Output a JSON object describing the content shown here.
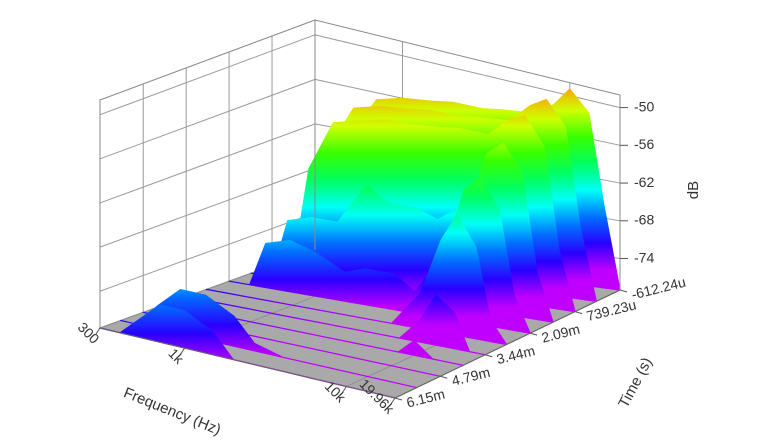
{
  "chart_data": {
    "type": "waterfall3d",
    "xlabel": "Frequency (Hz)",
    "ylabel": "Time (s)",
    "zlabel": "dB",
    "xscale": "log",
    "colormap": "rainbow",
    "floor_color": "#a9a9a9",
    "grid": true,
    "xlim": [
      300,
      19960
    ],
    "xticks": [
      300,
      {
        "value": 1000,
        "label": "1k"
      },
      {
        "value": 10000,
        "label": "10k"
      },
      {
        "value": 19960,
        "label": "19.96k"
      }
    ],
    "ylim": [
      -0.00061224,
      0.00615
    ],
    "yticks": [
      {
        "value": -0.00061224,
        "label": "-612.24u"
      },
      {
        "value": 0.00073923,
        "label": "739.23u"
      },
      {
        "value": 0.00209,
        "label": "2.09m"
      },
      {
        "value": 0.00344,
        "label": "3.44m"
      },
      {
        "value": 0.00479,
        "label": "4.79m"
      },
      {
        "value": 0.00615,
        "label": "6.15m"
      }
    ],
    "zlim": [
      -79,
      -48
    ],
    "zticks": [
      -74,
      -68,
      -62,
      -56,
      -50
    ],
    "x": [
      300,
      400,
      500,
      700,
      1000,
      1500,
      2000,
      3000,
      4000,
      6000,
      8000,
      10000,
      13000,
      16000,
      19960
    ],
    "y": [
      -0.00061224,
      0.0001,
      0.00074,
      0.0014,
      0.00209,
      0.0028,
      0.00344,
      0.0041,
      0.00479,
      0.0055,
      0.00615
    ],
    "values": [
      [
        -79,
        -79,
        -62,
        -57,
        -56,
        -55.5,
        -55,
        -55,
        -54.5,
        -54,
        -52,
        -49,
        -52,
        -66,
        -79
      ],
      [
        -79,
        -79,
        -63,
        -57,
        -56,
        -55.5,
        -55,
        -55,
        -54.5,
        -54,
        -51,
        -49.5,
        -53,
        -68,
        -79
      ],
      [
        -79,
        -79,
        -65,
        -58,
        -57,
        -56,
        -56,
        -55.5,
        -55,
        -55,
        -52,
        -51,
        -55,
        -70,
        -79
      ],
      [
        -79,
        -79,
        -71,
        -70,
        -70,
        -64,
        -66,
        -66,
        -67,
        -64,
        -56,
        -54,
        -58,
        -72,
        -79
      ],
      [
        -79,
        -79,
        -73,
        -72,
        -73,
        -75,
        -74,
        -74,
        -76,
        -70,
        -60,
        -58,
        -62,
        -74,
        -79
      ],
      [
        -79,
        -79,
        -79,
        -79,
        -79,
        -79,
        -79,
        -79,
        -79,
        -74,
        -66,
        -62,
        -66,
        -76,
        -79
      ],
      [
        -79,
        -79,
        -79,
        -79,
        -79,
        -79,
        -79,
        -79,
        -79,
        -79,
        -76,
        -72,
        -74,
        -79,
        -79
      ],
      [
        -79,
        -79,
        -79,
        -79,
        -79,
        -79,
        -79,
        -79,
        -79,
        -79,
        -79,
        -77,
        -79,
        -79,
        -79
      ],
      [
        -79,
        -79,
        -79,
        -79,
        -79,
        -79,
        -79,
        -79,
        -79,
        -79,
        -79,
        -79,
        -79,
        -79,
        -79
      ],
      [
        -79,
        -79,
        -76,
        -73,
        -73,
        -75,
        -78,
        -79,
        -79,
        -79,
        -79,
        -79,
        -79,
        -79,
        -79
      ],
      [
        -79,
        -79,
        -77,
        -74,
        -74,
        -76,
        -79,
        -79,
        -79,
        -79,
        -79,
        -79,
        -79,
        -79,
        -79
      ]
    ]
  }
}
